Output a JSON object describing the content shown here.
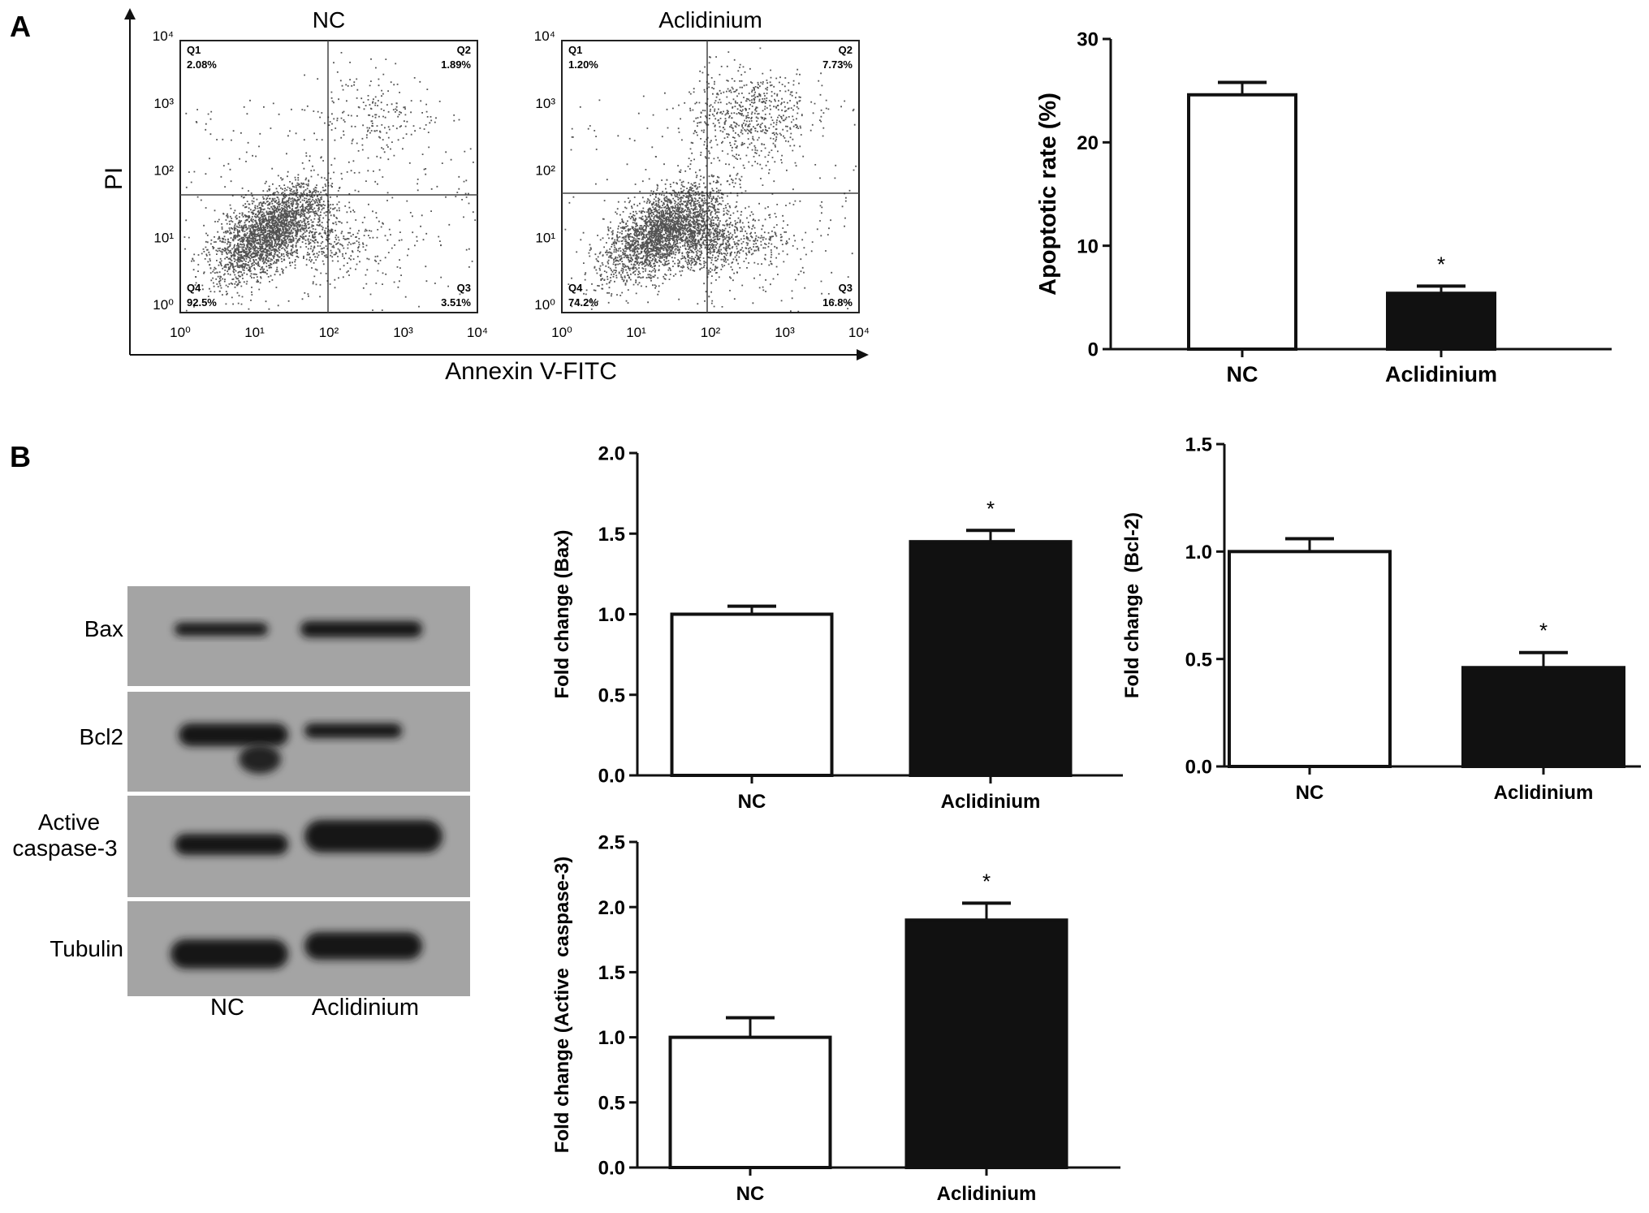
{
  "panel_labels": {
    "a": "A",
    "b": "B"
  },
  "flow": {
    "ylabel": "PI",
    "xlabel": "Annexin V-FITC",
    "tick_labels": [
      "10⁰",
      "10¹",
      "10²",
      "10³",
      "10⁴"
    ],
    "plots": [
      {
        "title": "NC",
        "quadrants": {
          "q1": {
            "name": "Q1",
            "value": "2.08%"
          },
          "q2": {
            "name": "Q2",
            "value": "1.89%"
          },
          "q3": {
            "name": "Q3",
            "value": "3.51%"
          },
          "q4": {
            "name": "Q4",
            "value": "92.5%"
          }
        }
      },
      {
        "title": "Aclidinium",
        "quadrants": {
          "q1": {
            "name": "Q1",
            "value": "1.20%"
          },
          "q2": {
            "name": "Q2",
            "value": "7.73%"
          },
          "q3": {
            "name": "Q3",
            "value": "16.8%"
          },
          "q4": {
            "name": "Q4",
            "value": "74.2%"
          }
        }
      }
    ]
  },
  "western": {
    "bands": [
      "Bax",
      "Bcl2",
      "Active caspase-3",
      "Tubulin"
    ],
    "lanes": [
      "NC",
      "Aclidinium"
    ]
  },
  "colors": {
    "control_bar": "#ffffff",
    "treated_bar": "#111111",
    "axis": "#111111"
  },
  "chart_data": [
    {
      "type": "bar",
      "id": "apoptotic",
      "categories": [
        "NC",
        "Aclidinium"
      ],
      "values": [
        24.6,
        5.4
      ],
      "errors": [
        1.2,
        0.7
      ],
      "significance": [
        "",
        "*"
      ],
      "ylabel": "Apoptotic rate (%)",
      "ylim": [
        0,
        30
      ],
      "yticks": [
        0,
        10,
        20,
        30
      ],
      "ytick_labels": [
        "0",
        "10",
        "20",
        "30"
      ]
    },
    {
      "type": "bar",
      "id": "bax",
      "categories": [
        "NC",
        "Aclidinium"
      ],
      "values": [
        1.0,
        1.45
      ],
      "errors": [
        0.05,
        0.07
      ],
      "significance": [
        "",
        "*"
      ],
      "ylabel": "Fold change (Bax)",
      "ylim": [
        0,
        2.0
      ],
      "yticks": [
        0,
        0.5,
        1.0,
        1.5,
        2.0
      ],
      "ytick_labels": [
        "0.0",
        "0.5",
        "1.0",
        "1.5",
        "2.0"
      ]
    },
    {
      "type": "bar",
      "id": "bcl2",
      "categories": [
        "NC",
        "Aclidinium"
      ],
      "values": [
        1.0,
        0.46
      ],
      "errors": [
        0.06,
        0.07
      ],
      "significance": [
        "",
        "*"
      ],
      "ylabel": "Fold change  (Bcl-2)",
      "ylim": [
        0,
        1.5
      ],
      "yticks": [
        0,
        0.5,
        1.0,
        1.5
      ],
      "ytick_labels": [
        "0.0",
        "0.5",
        "1.0",
        "1.5"
      ]
    },
    {
      "type": "bar",
      "id": "caspase",
      "categories": [
        "NC",
        "Aclidinium"
      ],
      "values": [
        1.0,
        1.9
      ],
      "errors": [
        0.15,
        0.13
      ],
      "significance": [
        "",
        "*"
      ],
      "ylabel": "Fold change (Active  caspase-3)",
      "ylim": [
        0,
        2.5
      ],
      "yticks": [
        0,
        0.5,
        1.0,
        1.5,
        2.0,
        2.5
      ],
      "ytick_labels": [
        "0.0",
        "0.5",
        "1.0",
        "1.5",
        "2.0",
        "2.5"
      ]
    }
  ]
}
